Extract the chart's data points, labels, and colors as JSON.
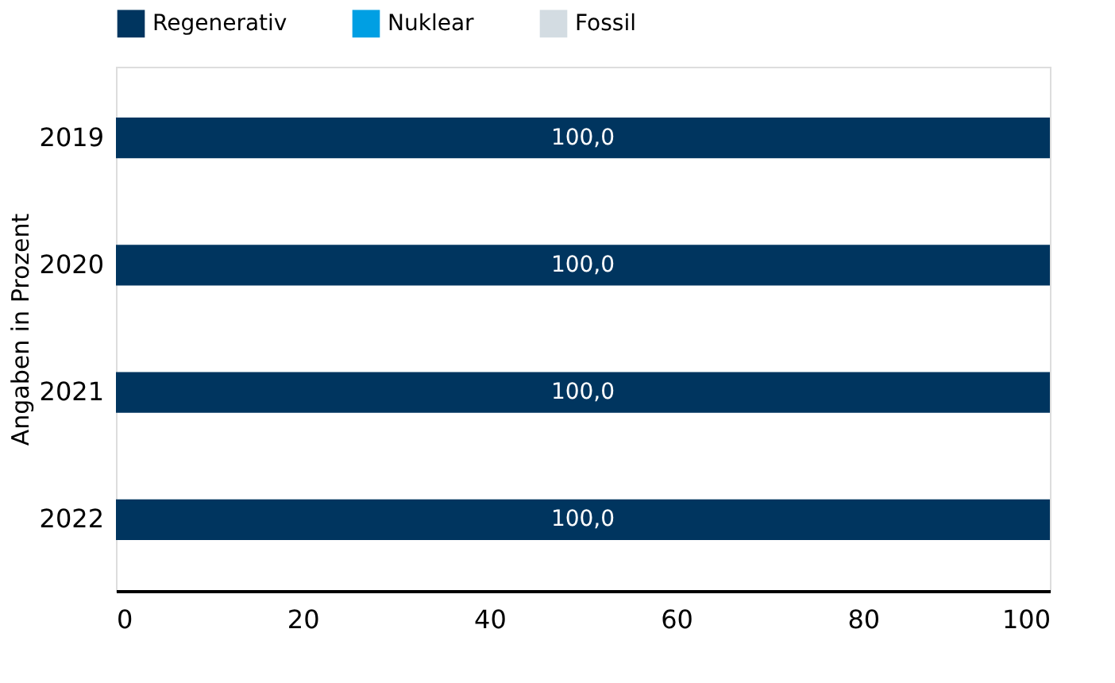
{
  "chart_data": {
    "type": "bar",
    "orientation": "horizontal",
    "stacked": true,
    "ylabel": "Angaben in Prozent",
    "categories": [
      "2019",
      "2020",
      "2021",
      "2022"
    ],
    "series": [
      {
        "name": "Regenerativ",
        "color": "#00355f",
        "values": [
          100.0,
          100.0,
          100.0,
          100.0
        ],
        "value_labels": [
          "100,0",
          "100,0",
          "100,0",
          "100,0"
        ]
      },
      {
        "name": "Nuklear",
        "color": "#009fe3",
        "values": [
          0,
          0,
          0,
          0
        ]
      },
      {
        "name": "Fossil",
        "color": "#d3dce2",
        "values": [
          0,
          0,
          0,
          0
        ]
      }
    ],
    "xlim": [
      0,
      100
    ],
    "xticks": [
      0,
      20,
      40,
      60,
      80,
      100
    ],
    "grid": false,
    "legend": "top"
  }
}
